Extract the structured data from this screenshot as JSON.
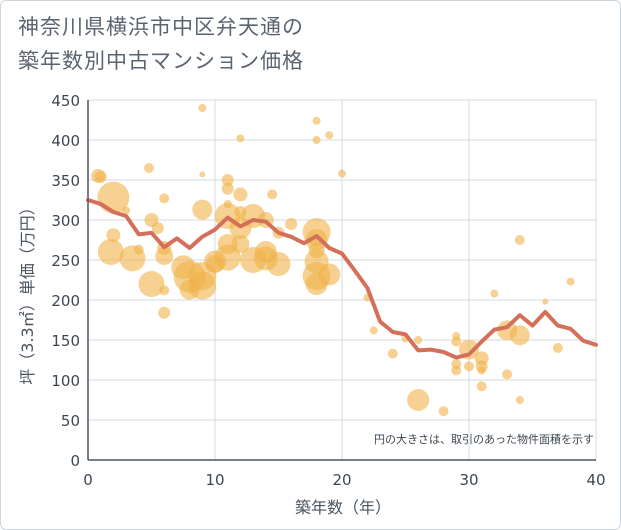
{
  "title_lines": [
    "神奈川県横浜市中区弁天通の",
    "築年数別中古マンション価格"
  ],
  "chart_data": {
    "type": "scatter",
    "title": "神奈川県横浜市中区弁天通の築年数別中古マンション価格",
    "xlabel": "築年数（年）",
    "ylabel": "坪（3.3㎡）単価（万円）",
    "xlim": [
      0,
      40
    ],
    "ylim": [
      0,
      450
    ],
    "xticks": [
      0,
      10,
      20,
      30,
      40
    ],
    "yticks": [
      0,
      50,
      100,
      150,
      200,
      250,
      300,
      350,
      400,
      450
    ],
    "grid": true,
    "note": "円の大きさは、取引のあった物件面積を示す",
    "colors": {
      "bubble": "#f0b34a",
      "line": "#d4705a",
      "grid": "#d4dbe2",
      "axis": "#4a5560"
    },
    "series": [
      {
        "kind": "bubble",
        "points": [
          {
            "x": 0.8,
            "y": 355,
            "r": 7
          },
          {
            "x": 1,
            "y": 354,
            "r": 6
          },
          {
            "x": 2,
            "y": 328,
            "r": 16
          },
          {
            "x": 2,
            "y": 281,
            "r": 7
          },
          {
            "x": 1.8,
            "y": 260,
            "r": 13
          },
          {
            "x": 3,
            "y": 312,
            "r": 4
          },
          {
            "x": 3.5,
            "y": 252,
            "r": 13
          },
          {
            "x": 4,
            "y": 263,
            "r": 5
          },
          {
            "x": 4.8,
            "y": 365,
            "r": 5
          },
          {
            "x": 5,
            "y": 300,
            "r": 7
          },
          {
            "x": 5,
            "y": 220,
            "r": 13
          },
          {
            "x": 5.5,
            "y": 290,
            "r": 6
          },
          {
            "x": 6,
            "y": 327,
            "r": 5
          },
          {
            "x": 6,
            "y": 265,
            "r": 7
          },
          {
            "x": 6,
            "y": 255,
            "r": 9
          },
          {
            "x": 6,
            "y": 212,
            "r": 5
          },
          {
            "x": 6,
            "y": 184,
            "r": 6
          },
          {
            "x": 7.5,
            "y": 241,
            "r": 12
          },
          {
            "x": 8,
            "y": 229,
            "r": 16
          },
          {
            "x": 8,
            "y": 213,
            "r": 10
          },
          {
            "x": 9,
            "y": 440,
            "r": 4
          },
          {
            "x": 9,
            "y": 357,
            "r": 3
          },
          {
            "x": 9,
            "y": 313,
            "r": 10
          },
          {
            "x": 9,
            "y": 230,
            "r": 14
          },
          {
            "x": 9,
            "y": 218,
            "r": 14
          },
          {
            "x": 10,
            "y": 248,
            "r": 11
          },
          {
            "x": 10,
            "y": 245,
            "r": 9
          },
          {
            "x": 11,
            "y": 350,
            "r": 6
          },
          {
            "x": 11,
            "y": 339,
            "r": 6
          },
          {
            "x": 11,
            "y": 320,
            "r": 4
          },
          {
            "x": 11,
            "y": 305,
            "r": 13
          },
          {
            "x": 11,
            "y": 270,
            "r": 10
          },
          {
            "x": 11,
            "y": 253,
            "r": 13
          },
          {
            "x": 12,
            "y": 402,
            "r": 4
          },
          {
            "x": 12,
            "y": 332,
            "r": 7
          },
          {
            "x": 12,
            "y": 310,
            "r": 6
          },
          {
            "x": 12,
            "y": 290,
            "r": 11
          },
          {
            "x": 12,
            "y": 270,
            "r": 9
          },
          {
            "x": 13,
            "y": 305,
            "r": 12
          },
          {
            "x": 13,
            "y": 250,
            "r": 13
          },
          {
            "x": 14,
            "y": 300,
            "r": 8
          },
          {
            "x": 14,
            "y": 260,
            "r": 11
          },
          {
            "x": 14,
            "y": 252,
            "r": 12
          },
          {
            "x": 14.5,
            "y": 332,
            "r": 5
          },
          {
            "x": 15,
            "y": 245,
            "r": 12
          },
          {
            "x": 15,
            "y": 284,
            "r": 6
          },
          {
            "x": 16,
            "y": 295,
            "r": 6
          },
          {
            "x": 18,
            "y": 424,
            "r": 4
          },
          {
            "x": 18,
            "y": 400,
            "r": 4
          },
          {
            "x": 18,
            "y": 285,
            "r": 14
          },
          {
            "x": 18,
            "y": 275,
            "r": 11
          },
          {
            "x": 18,
            "y": 262,
            "r": 8
          },
          {
            "x": 18,
            "y": 248,
            "r": 12
          },
          {
            "x": 18,
            "y": 230,
            "r": 14
          },
          {
            "x": 18,
            "y": 220,
            "r": 11
          },
          {
            "x": 19,
            "y": 406,
            "r": 4
          },
          {
            "x": 19,
            "y": 232,
            "r": 11
          },
          {
            "x": 20,
            "y": 358,
            "r": 4
          },
          {
            "x": 22,
            "y": 203,
            "r": 4
          },
          {
            "x": 22.5,
            "y": 162,
            "r": 4
          },
          {
            "x": 24,
            "y": 133,
            "r": 5
          },
          {
            "x": 25,
            "y": 152,
            "r": 4
          },
          {
            "x": 26,
            "y": 75,
            "r": 11
          },
          {
            "x": 26,
            "y": 150,
            "r": 4
          },
          {
            "x": 28,
            "y": 61,
            "r": 5
          },
          {
            "x": 29,
            "y": 155,
            "r": 4
          },
          {
            "x": 29,
            "y": 148,
            "r": 5
          },
          {
            "x": 29,
            "y": 120,
            "r": 5
          },
          {
            "x": 29,
            "y": 112,
            "r": 5
          },
          {
            "x": 30,
            "y": 138,
            "r": 10
          },
          {
            "x": 30,
            "y": 117,
            "r": 5
          },
          {
            "x": 31,
            "y": 127,
            "r": 7
          },
          {
            "x": 31,
            "y": 117,
            "r": 6
          },
          {
            "x": 31,
            "y": 112,
            "r": 4
          },
          {
            "x": 31,
            "y": 92,
            "r": 5
          },
          {
            "x": 32,
            "y": 208,
            "r": 4
          },
          {
            "x": 33,
            "y": 162,
            "r": 10
          },
          {
            "x": 33,
            "y": 107,
            "r": 5
          },
          {
            "x": 34,
            "y": 275,
            "r": 5
          },
          {
            "x": 34,
            "y": 156,
            "r": 10
          },
          {
            "x": 34,
            "y": 75,
            "r": 4
          },
          {
            "x": 36,
            "y": 198,
            "r": 3
          },
          {
            "x": 37,
            "y": 140,
            "r": 5
          },
          {
            "x": 38,
            "y": 223,
            "r": 4
          }
        ]
      },
      {
        "kind": "line",
        "x": [
          0,
          1,
          2,
          3,
          4,
          5,
          6,
          7,
          8,
          9,
          10,
          11,
          12,
          13,
          14,
          15,
          16,
          17,
          18,
          19,
          20,
          21,
          22,
          23,
          24,
          25,
          26,
          27,
          28,
          29,
          30,
          31,
          32,
          33,
          34,
          35,
          36,
          37,
          38,
          39,
          40
        ],
        "y": [
          325,
          320,
          310,
          305,
          282,
          284,
          266,
          277,
          265,
          279,
          288,
          303,
          292,
          300,
          298,
          284,
          279,
          271,
          280,
          265,
          258,
          237,
          215,
          173,
          160,
          157,
          137,
          138,
          135,
          128,
          132,
          148,
          163,
          166,
          181,
          168,
          185,
          168,
          164,
          149,
          144
        ]
      }
    ]
  }
}
